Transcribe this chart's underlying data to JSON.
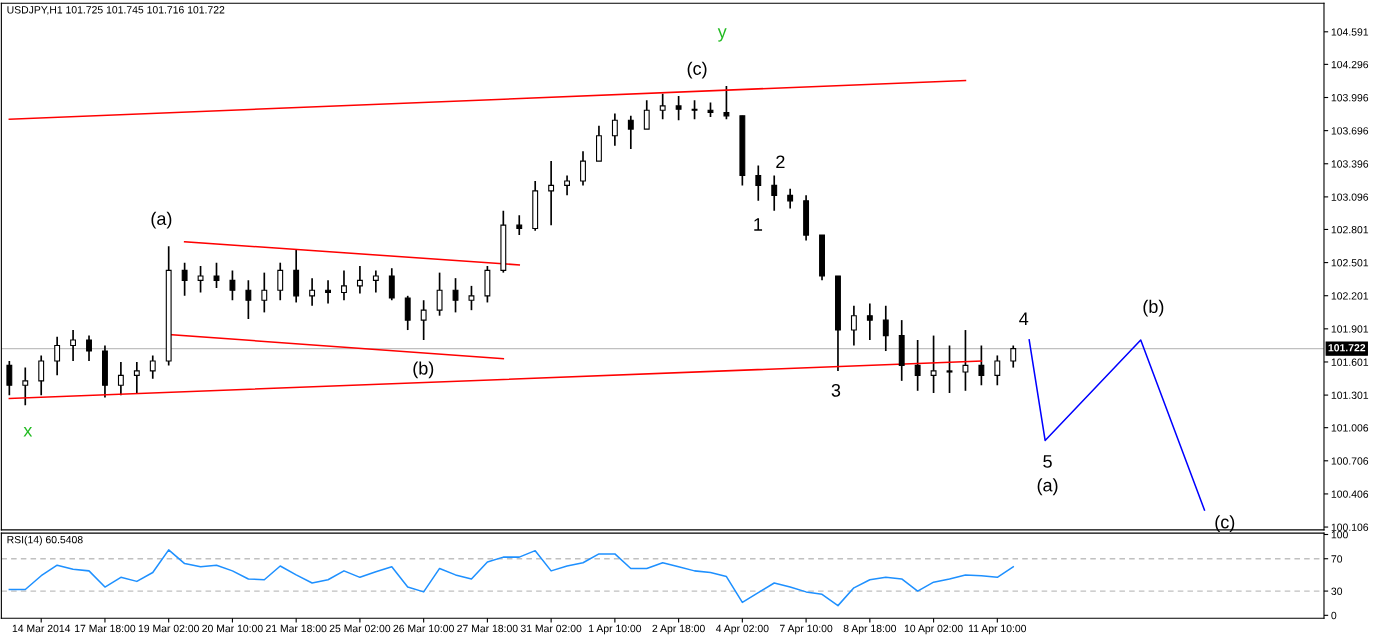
{
  "chart_data": [
    {
      "type": "candlestick",
      "title": "USDJPY,H1 101.725 101.745 101.716 101.722",
      "categories": [
        null,
        null,
        null,
        null,
        null,
        null,
        null,
        null,
        null,
        null,
        null,
        null,
        null,
        null,
        null,
        null,
        null,
        null,
        null,
        null,
        null,
        null,
        null,
        null,
        null,
        null,
        null,
        null,
        null,
        null,
        null,
        null,
        null,
        null,
        null,
        null,
        null,
        null,
        null,
        null,
        null,
        null,
        null,
        null,
        null,
        null,
        null,
        null,
        null,
        null,
        null,
        null,
        null,
        null,
        null,
        null,
        null,
        null,
        null,
        null,
        null,
        null,
        null,
        null,
        null,
        null,
        null,
        null,
        null,
        null,
        null,
        null,
        null,
        null,
        null,
        null,
        null,
        null,
        null,
        null,
        null,
        null,
        null
      ],
      "ohlc": [
        [
          101.57,
          101.61,
          101.3,
          101.39
        ],
        [
          101.39,
          101.55,
          101.21,
          101.43
        ],
        [
          101.43,
          101.66,
          101.3,
          101.61
        ],
        [
          101.61,
          101.83,
          101.48,
          101.75
        ],
        [
          101.75,
          101.89,
          101.61,
          101.8
        ],
        [
          101.8,
          101.84,
          101.61,
          101.7
        ],
        [
          101.7,
          101.75,
          101.28,
          101.39
        ],
        [
          101.39,
          101.6,
          101.3,
          101.48
        ],
        [
          101.48,
          101.6,
          101.32,
          101.52
        ],
        [
          101.52,
          101.66,
          101.45,
          101.61
        ],
        [
          101.61,
          102.65,
          101.57,
          102.43
        ],
        [
          102.43,
          102.5,
          102.2,
          102.34
        ],
        [
          102.34,
          102.47,
          102.23,
          102.38
        ],
        [
          102.38,
          102.5,
          102.27,
          102.34
        ],
        [
          102.34,
          102.43,
          102.16,
          102.25
        ],
        [
          102.25,
          102.34,
          101.99,
          102.16
        ],
        [
          102.16,
          102.41,
          102.05,
          102.25
        ],
        [
          102.25,
          102.5,
          102.16,
          102.43
        ],
        [
          102.43,
          102.62,
          102.14,
          102.2
        ],
        [
          102.2,
          102.36,
          102.11,
          102.25
        ],
        [
          102.25,
          102.34,
          102.13,
          102.23
        ],
        [
          102.23,
          102.43,
          102.16,
          102.29
        ],
        [
          102.29,
          102.47,
          102.22,
          102.34
        ],
        [
          102.34,
          102.43,
          102.23,
          102.38
        ],
        [
          102.38,
          102.45,
          102.16,
          102.18
        ],
        [
          102.18,
          102.2,
          101.89,
          101.98
        ],
        [
          101.98,
          102.16,
          101.8,
          102.07
        ],
        [
          102.07,
          102.41,
          102.02,
          102.25
        ],
        [
          102.25,
          102.36,
          102.05,
          102.16
        ],
        [
          102.16,
          102.29,
          102.07,
          102.2
        ],
        [
          102.2,
          102.47,
          102.14,
          102.43
        ],
        [
          102.43,
          102.97,
          102.41,
          102.84
        ],
        [
          102.84,
          102.93,
          102.75,
          102.81
        ],
        [
          102.81,
          103.24,
          102.79,
          103.15
        ],
        [
          103.15,
          103.42,
          102.84,
          103.2
        ],
        [
          103.2,
          103.29,
          103.11,
          103.24
        ],
        [
          103.24,
          103.51,
          103.2,
          103.42
        ],
        [
          103.42,
          103.74,
          103.42,
          103.65
        ],
        [
          103.65,
          103.85,
          103.56,
          103.79
        ],
        [
          103.79,
          103.83,
          103.53,
          103.71
        ],
        [
          103.71,
          103.97,
          103.71,
          103.88
        ],
        [
          103.88,
          104.03,
          103.8,
          103.92
        ],
        [
          103.92,
          104.01,
          103.79,
          103.89
        ],
        [
          103.89,
          103.97,
          103.8,
          103.88
        ],
        [
          103.88,
          103.95,
          103.82,
          103.86
        ],
        [
          103.86,
          104.1,
          103.8,
          103.83
        ],
        [
          103.83,
          103.83,
          103.2,
          103.29
        ],
        [
          103.29,
          103.38,
          103.06,
          103.2
        ],
        [
          103.2,
          103.29,
          102.97,
          103.11
        ],
        [
          103.11,
          103.17,
          102.99,
          103.06
        ],
        [
          103.06,
          103.11,
          102.7,
          102.75
        ],
        [
          102.75,
          102.75,
          102.34,
          102.38
        ],
        [
          102.38,
          102.38,
          101.52,
          101.89
        ],
        [
          101.89,
          102.11,
          101.75,
          102.02
        ],
        [
          102.02,
          102.13,
          101.8,
          101.98
        ],
        [
          101.98,
          102.11,
          101.7,
          101.84
        ],
        [
          101.84,
          101.98,
          101.43,
          101.57
        ],
        [
          101.57,
          101.8,
          101.34,
          101.48
        ],
        [
          101.48,
          101.84,
          101.32,
          101.52
        ],
        [
          101.52,
          101.75,
          101.32,
          101.51
        ],
        [
          101.51,
          101.89,
          101.34,
          101.57
        ],
        [
          101.57,
          101.75,
          101.39,
          101.48
        ],
        [
          101.48,
          101.66,
          101.39,
          101.61
        ],
        [
          101.61,
          101.75,
          101.55,
          101.722
        ],
        null,
        null,
        null,
        null,
        null,
        null,
        null,
        null,
        null,
        null,
        null,
        null,
        null,
        null,
        null,
        null,
        null,
        null,
        null
      ],
      "series": [
        {
          "type": "line",
          "color": "#ff0000",
          "values": [
            103.8,
            null,
            null,
            null,
            null,
            null,
            null,
            null,
            null,
            null,
            null,
            null,
            null,
            null,
            null,
            null,
            null,
            null,
            null,
            null,
            null,
            null,
            null,
            null,
            null,
            null,
            null,
            null,
            null,
            null,
            null,
            null,
            null,
            null,
            null,
            null,
            null,
            null,
            null,
            null,
            null,
            null,
            null,
            null,
            null,
            null,
            null,
            null,
            null,
            null,
            null,
            null,
            null,
            null,
            null,
            null,
            null,
            null,
            null,
            null,
            104.15,
            null,
            null,
            null,
            null,
            null,
            null,
            null,
            null,
            null,
            null,
            null,
            null,
            null,
            null,
            null,
            null,
            null,
            null,
            null,
            null,
            null,
            null
          ]
        },
        {
          "type": "line",
          "color": "#ff0000",
          "values": [
            101.27,
            null,
            null,
            null,
            null,
            null,
            null,
            null,
            null,
            null,
            null,
            null,
            null,
            null,
            null,
            null,
            null,
            null,
            null,
            null,
            null,
            null,
            null,
            null,
            null,
            null,
            null,
            null,
            null,
            null,
            null,
            null,
            null,
            null,
            null,
            null,
            null,
            null,
            null,
            null,
            null,
            null,
            null,
            null,
            null,
            null,
            null,
            null,
            null,
            null,
            null,
            null,
            null,
            null,
            null,
            null,
            null,
            null,
            null,
            null,
            null,
            101.61,
            null,
            null,
            null,
            null,
            null,
            null,
            null,
            null,
            null,
            null,
            null,
            null,
            null,
            null,
            null,
            null,
            null,
            null,
            null,
            null,
            null
          ]
        },
        {
          "type": "line",
          "color": "#ff0000",
          "values": [
            null,
            null,
            null,
            null,
            null,
            null,
            null,
            null,
            null,
            null,
            null,
            102.69,
            null,
            null,
            null,
            null,
            null,
            null,
            null,
            null,
            null,
            null,
            null,
            null,
            null,
            null,
            null,
            null,
            null,
            null,
            null,
            null,
            102.48,
            null,
            null,
            null,
            null,
            null,
            null,
            null,
            null,
            null,
            null,
            null,
            null,
            null,
            null,
            null,
            null,
            null,
            null,
            null,
            null,
            null,
            null,
            null,
            null,
            null,
            null,
            null,
            null,
            null,
            null,
            null,
            null,
            null,
            null,
            null,
            null,
            null,
            null,
            null,
            null,
            null,
            null,
            null,
            null,
            null,
            null,
            null,
            null,
            null,
            null
          ]
        },
        {
          "type": "line",
          "color": "#ff0000",
          "values": [
            null,
            null,
            null,
            null,
            null,
            null,
            null,
            null,
            null,
            null,
            101.85,
            null,
            null,
            null,
            null,
            null,
            null,
            null,
            null,
            null,
            null,
            null,
            null,
            null,
            null,
            null,
            null,
            null,
            null,
            null,
            null,
            101.63,
            null,
            null,
            null,
            null,
            null,
            null,
            null,
            null,
            null,
            null,
            null,
            null,
            null,
            null,
            null,
            null,
            null,
            null,
            null,
            null,
            null,
            null,
            null,
            null,
            null,
            null,
            null,
            null,
            null,
            null,
            null,
            null,
            null,
            null,
            null,
            null,
            null,
            null,
            null,
            null,
            null,
            null,
            null,
            null,
            null,
            null,
            null,
            null,
            null,
            null,
            null
          ]
        },
        {
          "type": "line",
          "color": "#0000ff",
          "values": [
            null,
            null,
            null,
            null,
            null,
            null,
            null,
            null,
            null,
            null,
            null,
            null,
            null,
            null,
            null,
            null,
            null,
            null,
            null,
            null,
            null,
            null,
            null,
            null,
            null,
            null,
            null,
            null,
            null,
            null,
            null,
            null,
            null,
            null,
            null,
            null,
            null,
            null,
            null,
            null,
            null,
            null,
            null,
            null,
            null,
            null,
            null,
            null,
            null,
            null,
            null,
            null,
            null,
            null,
            null,
            null,
            null,
            null,
            null,
            null,
            null,
            null,
            null,
            null,
            101.8,
            100.89,
            null,
            null,
            null,
            null,
            null,
            101.8,
            null,
            null,
            null,
            100.26,
            null,
            null,
            null,
            null,
            null,
            null,
            null
          ]
        }
      ],
      "annotations": [
        "y",
        "(c)",
        "(a)",
        "(b)",
        "x",
        "1",
        "2",
        "3",
        "4",
        "5",
        "(a)",
        "(b)",
        "(c)"
      ],
      "ref_lines": [
        {
          "axis": "y",
          "value": 101.722,
          "label": "101.722",
          "color": "#c0c0c0"
        }
      ],
      "ylim": [
        100.08,
        104.85
      ],
      "yticks": [
        104.591,
        104.296,
        103.996,
        103.696,
        103.396,
        103.096,
        102.801,
        102.501,
        102.201,
        101.901,
        101.601,
        101.301,
        101.006,
        100.706,
        100.406,
        100.106
      ],
      "tick_labels": "y",
      "grid": false,
      "legend": false
    },
    {
      "type": "line",
      "title": "RSI(14) 60.5408",
      "categories": [
        null,
        null,
        "14 Mar 2014",
        null,
        null,
        null,
        "17 Mar 18:00",
        null,
        null,
        null,
        "19 Mar 02:00",
        null,
        null,
        null,
        "20 Mar 10:00",
        null,
        null,
        null,
        "21 Mar 18:00",
        null,
        null,
        null,
        "25 Mar 02:00",
        null,
        null,
        null,
        "26 Mar 10:00",
        null,
        null,
        null,
        "27 Mar 18:00",
        null,
        null,
        null,
        "31 Mar 02:00",
        null,
        null,
        null,
        "1 Apr 10:00",
        null,
        null,
        null,
        "2 Apr 18:00",
        null,
        null,
        null,
        "4 Apr 02:00",
        null,
        null,
        null,
        "7 Apr 10:00",
        null,
        null,
        null,
        "8 Apr 18:00",
        null,
        null,
        null,
        "10 Apr 02:00",
        null,
        null,
        null,
        "11 Apr 10:00",
        null,
        null,
        null,
        null,
        null,
        null,
        null,
        null,
        null,
        null,
        null,
        null,
        null,
        null,
        null,
        null,
        null,
        null,
        null,
        null
      ],
      "series": [
        {
          "color": "#1e90ff",
          "values": [
            32,
            32,
            49,
            62,
            57,
            55,
            35,
            47,
            42,
            53,
            81,
            64,
            60,
            62,
            55,
            45,
            44,
            61,
            50,
            40,
            44,
            55,
            47,
            54,
            60,
            35,
            29,
            58,
            50,
            45,
            66,
            72,
            72,
            80,
            55,
            61,
            65,
            76,
            76,
            58,
            58,
            65,
            60,
            55,
            53,
            48,
            16,
            28,
            40,
            35,
            29,
            26,
            12,
            34,
            44,
            47,
            45,
            30,
            41,
            45,
            50,
            49,
            47,
            60,
            null,
            null,
            null,
            null,
            null,
            null,
            null,
            null,
            null,
            null,
            null,
            null,
            null,
            null,
            null,
            null,
            null,
            null,
            null
          ]
        }
      ],
      "ref_lines": [
        {
          "axis": "y",
          "value": 70,
          "color": "#c0c0c0",
          "line_style": "dashed"
        },
        {
          "axis": "y",
          "value": 30,
          "color": "#c0c0c0",
          "line_style": "dashed"
        }
      ],
      "ylim": [
        -3.6,
        101.7
      ],
      "yticks": [
        100,
        70,
        30,
        0
      ],
      "grid": false,
      "legend": false
    }
  ]
}
